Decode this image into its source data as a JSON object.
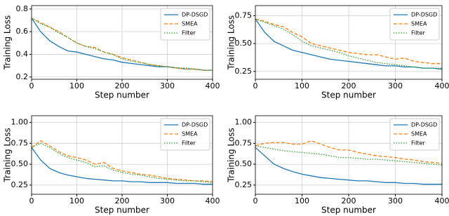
{
  "chart_data": [
    {
      "type": "line",
      "xlabel": "Step number",
      "ylabel": "Training Loss",
      "x": [
        0,
        20,
        40,
        60,
        80,
        100,
        120,
        140,
        160,
        180,
        200,
        220,
        240,
        260,
        280,
        300,
        320,
        340,
        360,
        380,
        400
      ],
      "xlim": [
        0,
        400
      ],
      "xticks": [
        0,
        100,
        200,
        300,
        400
      ],
      "ylim": [
        0.18,
        0.83
      ],
      "yticks": [
        0.2,
        0.4,
        0.6,
        0.8
      ],
      "grid": true,
      "legend": "upper right",
      "series": [
        {
          "name": "DP-DSGD",
          "color": "#1f77b4",
          "linestyle": "solid",
          "values": [
            0.72,
            0.6,
            0.52,
            0.47,
            0.43,
            0.42,
            0.4,
            0.38,
            0.36,
            0.35,
            0.33,
            0.32,
            0.31,
            0.3,
            0.29,
            0.29,
            0.28,
            0.27,
            0.27,
            0.26,
            0.26
          ]
        },
        {
          "name": "SMEA",
          "color": "#ff7f0e",
          "linestyle": "dashed",
          "values": [
            0.72,
            0.68,
            0.64,
            0.6,
            0.55,
            0.5,
            0.47,
            0.46,
            0.42,
            0.4,
            0.37,
            0.35,
            0.33,
            0.31,
            0.3,
            0.29,
            0.28,
            0.27,
            0.27,
            0.26,
            0.26
          ]
        },
        {
          "name": "Filter",
          "color": "#2ca02c",
          "linestyle": "dotted",
          "values": [
            0.72,
            0.67,
            0.64,
            0.59,
            0.55,
            0.5,
            0.47,
            0.45,
            0.42,
            0.4,
            0.36,
            0.34,
            0.33,
            0.31,
            0.3,
            0.29,
            0.28,
            0.28,
            0.27,
            0.26,
            0.26
          ]
        }
      ]
    },
    {
      "type": "line",
      "xlabel": "Step number",
      "ylabel": "Training Loss",
      "x": [
        0,
        20,
        40,
        60,
        80,
        100,
        120,
        140,
        160,
        180,
        200,
        220,
        240,
        260,
        280,
        300,
        320,
        340,
        360,
        380,
        400
      ],
      "xlim": [
        0,
        400
      ],
      "xticks": [
        0,
        100,
        200,
        300,
        400
      ],
      "ylim": [
        0.18,
        0.84
      ],
      "yticks": [
        {
          "value": 0.25,
          "label": "0.25"
        },
        {
          "value": 0.5,
          "label": "0.50"
        },
        {
          "value": 0.75,
          "label": "0.75"
        }
      ],
      "grid": true,
      "legend": "upper right",
      "series": [
        {
          "name": "DP-DSGD",
          "color": "#1f77b4",
          "linestyle": "solid",
          "values": [
            0.72,
            0.6,
            0.52,
            0.48,
            0.44,
            0.42,
            0.4,
            0.38,
            0.36,
            0.35,
            0.34,
            0.33,
            0.32,
            0.31,
            0.3,
            0.3,
            0.29,
            0.29,
            0.28,
            0.28,
            0.27
          ]
        },
        {
          "name": "SMEA",
          "color": "#ff7f0e",
          "linestyle": "dashed",
          "values": [
            0.72,
            0.7,
            0.67,
            0.65,
            0.6,
            0.56,
            0.5,
            0.48,
            0.46,
            0.44,
            0.42,
            0.41,
            0.4,
            0.4,
            0.38,
            0.36,
            0.37,
            0.34,
            0.33,
            0.32,
            0.32
          ]
        },
        {
          "name": "Filter",
          "color": "#2ca02c",
          "linestyle": "dotted",
          "values": [
            0.72,
            0.69,
            0.66,
            0.63,
            0.58,
            0.52,
            0.48,
            0.46,
            0.44,
            0.42,
            0.39,
            0.37,
            0.35,
            0.33,
            0.32,
            0.31,
            0.3,
            0.29,
            0.28,
            0.28,
            0.28
          ]
        }
      ]
    },
    {
      "type": "line",
      "xlabel": "Step number",
      "ylabel": "Training Loss",
      "x": [
        0,
        20,
        40,
        60,
        80,
        100,
        120,
        140,
        160,
        180,
        200,
        220,
        240,
        260,
        280,
        300,
        320,
        340,
        360,
        380,
        400
      ],
      "xlim": [
        0,
        400
      ],
      "xticks": [
        0,
        100,
        200,
        300,
        400
      ],
      "ylim": [
        0.14,
        1.08
      ],
      "yticks": [
        {
          "value": 0.25,
          "label": "0.25"
        },
        {
          "value": 0.5,
          "label": "0.50"
        },
        {
          "value": 0.75,
          "label": "0.75"
        },
        {
          "value": 1.0,
          "label": "1.00"
        }
      ],
      "grid": true,
      "legend": "upper right",
      "series": [
        {
          "name": "DP-DSGD",
          "color": "#1f77b4",
          "linestyle": "solid",
          "values": [
            0.7,
            0.55,
            0.45,
            0.4,
            0.37,
            0.35,
            0.33,
            0.32,
            0.31,
            0.3,
            0.3,
            0.29,
            0.29,
            0.28,
            0.28,
            0.28,
            0.27,
            0.27,
            0.27,
            0.26,
            0.26
          ]
        },
        {
          "name": "SMEA",
          "color": "#ff7f0e",
          "linestyle": "dashed",
          "values": [
            0.7,
            0.78,
            0.72,
            0.65,
            0.6,
            0.58,
            0.55,
            0.5,
            0.52,
            0.45,
            0.42,
            0.4,
            0.38,
            0.37,
            0.35,
            0.33,
            0.32,
            0.31,
            0.3,
            0.3,
            0.29
          ]
        },
        {
          "name": "Filter",
          "color": "#2ca02c",
          "linestyle": "dotted",
          "values": [
            0.7,
            0.75,
            0.7,
            0.63,
            0.58,
            0.55,
            0.52,
            0.47,
            0.48,
            0.43,
            0.4,
            0.38,
            0.37,
            0.35,
            0.33,
            0.32,
            0.31,
            0.3,
            0.3,
            0.29,
            0.28
          ]
        }
      ]
    },
    {
      "type": "line",
      "xlabel": "Step number",
      "ylabel": "Training Loss",
      "x": [
        0,
        20,
        40,
        60,
        80,
        100,
        120,
        140,
        160,
        180,
        200,
        220,
        240,
        260,
        280,
        300,
        320,
        340,
        360,
        380,
        400
      ],
      "xlim": [
        0,
        400
      ],
      "xticks": [
        0,
        100,
        200,
        300,
        400
      ],
      "ylim": [
        0.14,
        1.08
      ],
      "yticks": [
        {
          "value": 0.25,
          "label": "0.25"
        },
        {
          "value": 0.5,
          "label": "0.50"
        },
        {
          "value": 0.75,
          "label": "0.75"
        },
        {
          "value": 1.0,
          "label": "1.00"
        }
      ],
      "grid": true,
      "legend": "upper right",
      "series": [
        {
          "name": "DP-DSGD",
          "color": "#1f77b4",
          "linestyle": "solid",
          "values": [
            0.7,
            0.6,
            0.5,
            0.45,
            0.41,
            0.38,
            0.36,
            0.34,
            0.33,
            0.32,
            0.31,
            0.3,
            0.3,
            0.29,
            0.28,
            0.28,
            0.27,
            0.27,
            0.26,
            0.26,
            0.26
          ]
        },
        {
          "name": "SMEA",
          "color": "#ff7f0e",
          "linestyle": "dashed",
          "values": [
            0.72,
            0.75,
            0.76,
            0.76,
            0.74,
            0.74,
            0.78,
            0.74,
            0.7,
            0.67,
            0.67,
            0.64,
            0.62,
            0.6,
            0.59,
            0.58,
            0.56,
            0.55,
            0.53,
            0.52,
            0.51
          ]
        },
        {
          "name": "Filter",
          "color": "#2ca02c",
          "linestyle": "dotted",
          "values": [
            0.72,
            0.7,
            0.68,
            0.66,
            0.65,
            0.64,
            0.63,
            0.62,
            0.6,
            0.58,
            0.58,
            0.57,
            0.56,
            0.56,
            0.55,
            0.54,
            0.53,
            0.52,
            0.51,
            0.5,
            0.49
          ]
        }
      ]
    }
  ]
}
